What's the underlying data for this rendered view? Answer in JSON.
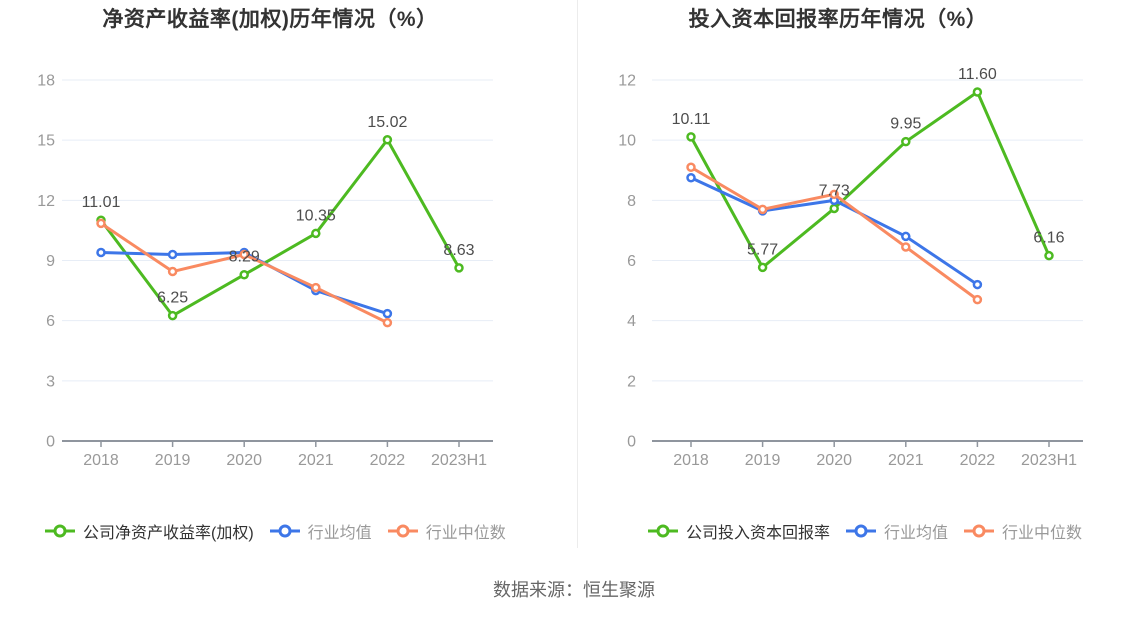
{
  "source_note": "数据来源：恒生聚源",
  "colors": {
    "company_green": "#4dba21",
    "industry_avg_blue": "#3d76e8",
    "industry_median_orange": "#f98a61",
    "grid": "#e7edf6",
    "axis": "#8f959e",
    "tick_label": "#999999",
    "value_label": "#4d4d4d",
    "title": "#333333",
    "legend_muted": "#999999",
    "legend_dark": "#333333",
    "source_text": "#666666"
  },
  "chart_data": [
    {
      "type": "line",
      "title": "净资产收益率(加权)历年情况（%）",
      "categories": [
        "2018",
        "2019",
        "2020",
        "2021",
        "2022",
        "2023H1"
      ],
      "ylim": [
        0,
        18
      ],
      "yticks": [
        0,
        3,
        6,
        9,
        12,
        15,
        18
      ],
      "grid": true,
      "legend_position": "bottom",
      "series": [
        {
          "name": "公司净资产收益率(加权)",
          "color": "#4dba21",
          "values": [
            11.01,
            6.25,
            8.29,
            10.35,
            15.02,
            8.63
          ],
          "point_labels": [
            "11.01",
            "6.25",
            "8.29",
            "10.35",
            "15.02",
            "8.63"
          ]
        },
        {
          "name": "行业均值",
          "color": "#3d76e8",
          "values": [
            9.4,
            9.3,
            9.4,
            7.5,
            6.35,
            null
          ]
        },
        {
          "name": "行业中位数",
          "color": "#f98a61",
          "values": [
            10.85,
            8.45,
            9.3,
            7.65,
            5.9,
            null
          ]
        }
      ]
    },
    {
      "type": "line",
      "title": "投入资本回报率历年情况（%）",
      "categories": [
        "2018",
        "2019",
        "2020",
        "2021",
        "2022",
        "2023H1"
      ],
      "ylim": [
        0,
        12
      ],
      "yticks": [
        0,
        2,
        4,
        6,
        8,
        10,
        12
      ],
      "grid": true,
      "legend_position": "bottom",
      "series": [
        {
          "name": "公司投入资本回报率",
          "color": "#4dba21",
          "values": [
            10.11,
            5.77,
            7.73,
            9.95,
            11.6,
            6.16
          ],
          "point_labels": [
            "10.11",
            "5.77",
            "7.73",
            "9.95",
            "11.60",
            "6.16"
          ]
        },
        {
          "name": "行业均值",
          "color": "#3d76e8",
          "values": [
            8.75,
            7.65,
            8.0,
            6.8,
            5.2,
            null
          ]
        },
        {
          "name": "行业中位数",
          "color": "#f98a61",
          "values": [
            9.1,
            7.7,
            8.2,
            6.45,
            4.7,
            null
          ]
        }
      ]
    }
  ]
}
